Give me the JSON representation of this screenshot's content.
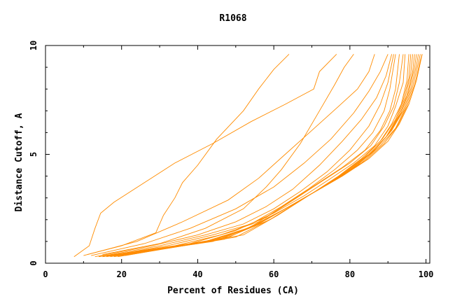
{
  "chart_data": {
    "type": "line",
    "title": "R1068",
    "xlabel": "Percent of Residues (CA)",
    "ylabel": "Distance Cutoff, A",
    "xlim": [
      0,
      101
    ],
    "ylim": [
      0,
      10
    ],
    "x_ticks": [
      0,
      20,
      40,
      60,
      80,
      100
    ],
    "y_ticks": [
      0,
      5,
      10
    ],
    "x_tick_labels": [
      "0",
      "20",
      "40",
      "60",
      "80",
      "100"
    ],
    "y_tick_labels": [
      "0",
      "5",
      "10"
    ],
    "color": "#ff8c00",
    "grid": false,
    "legend": "none",
    "series": [
      {
        "points": [
          [
            7.5,
            0.3
          ],
          [
            11.5,
            0.8
          ],
          [
            13,
            1.6
          ],
          [
            14.5,
            2.3
          ],
          [
            18,
            2.8
          ],
          [
            26,
            3.7
          ],
          [
            34,
            4.6
          ],
          [
            44,
            5.5
          ],
          [
            54,
            6.5
          ],
          [
            63,
            7.3
          ],
          [
            70.5,
            8.0
          ],
          [
            72,
            8.8
          ],
          [
            76.5,
            9.6
          ]
        ]
      },
      {
        "points": [
          [
            11,
            0.4
          ],
          [
            20,
            0.8
          ],
          [
            29,
            1.4
          ],
          [
            31,
            2.2
          ],
          [
            34,
            3.0
          ],
          [
            36,
            3.7
          ],
          [
            40,
            4.5
          ],
          [
            45,
            5.7
          ],
          [
            52,
            7.0
          ],
          [
            56,
            8.0
          ],
          [
            60,
            8.9
          ],
          [
            64,
            9.6
          ]
        ]
      },
      {
        "points": [
          [
            15,
            0.4
          ],
          [
            30,
            0.9
          ],
          [
            42,
            1.6
          ],
          [
            52,
            2.5
          ],
          [
            58,
            3.5
          ],
          [
            62,
            4.3
          ],
          [
            67,
            5.5
          ],
          [
            72,
            7.0
          ],
          [
            76,
            8.2
          ],
          [
            78.5,
            9.0
          ],
          [
            81,
            9.6
          ]
        ]
      },
      {
        "points": [
          [
            10,
            0.35
          ],
          [
            24,
            1.0
          ],
          [
            36,
            1.9
          ],
          [
            48,
            2.9
          ],
          [
            56,
            3.9
          ],
          [
            63,
            5.0
          ],
          [
            70,
            6.1
          ],
          [
            77,
            7.2
          ],
          [
            82,
            8.0
          ],
          [
            85,
            8.8
          ],
          [
            86.5,
            9.6
          ]
        ]
      },
      {
        "points": [
          [
            12,
            0.35
          ],
          [
            26,
            0.9
          ],
          [
            38,
            1.6
          ],
          [
            50,
            2.5
          ],
          [
            60,
            3.5
          ],
          [
            68,
            4.6
          ],
          [
            75,
            5.7
          ],
          [
            81,
            6.9
          ],
          [
            85,
            7.9
          ],
          [
            88,
            8.8
          ],
          [
            90,
            9.6
          ]
        ]
      },
      {
        "points": [
          [
            13,
            0.3
          ],
          [
            28,
            0.8
          ],
          [
            40,
            1.3
          ],
          [
            50,
            1.9
          ],
          [
            58,
            2.6
          ],
          [
            65,
            3.4
          ],
          [
            72,
            4.5
          ],
          [
            78,
            5.6
          ],
          [
            83,
            6.6
          ],
          [
            87,
            7.6
          ],
          [
            89.5,
            8.6
          ],
          [
            91,
            9.6
          ]
        ]
      },
      {
        "points": [
          [
            14,
            0.3
          ],
          [
            30,
            0.8
          ],
          [
            42,
            1.3
          ],
          [
            52,
            1.8
          ],
          [
            60,
            2.5
          ],
          [
            67,
            3.3
          ],
          [
            74,
            4.2
          ],
          [
            80,
            5.2
          ],
          [
            85,
            6.3
          ],
          [
            88,
            7.3
          ],
          [
            90,
            8.3
          ],
          [
            91.5,
            9.6
          ]
        ]
      },
      {
        "points": [
          [
            15,
            0.3
          ],
          [
            32,
            0.8
          ],
          [
            44,
            1.3
          ],
          [
            54,
            1.8
          ],
          [
            62,
            2.6
          ],
          [
            69,
            3.4
          ],
          [
            76,
            4.3
          ],
          [
            82,
            5.2
          ],
          [
            86,
            6.0
          ],
          [
            89,
            7.0
          ],
          [
            90.5,
            8.0
          ],
          [
            92,
            9.6
          ]
        ]
      },
      {
        "points": [
          [
            14,
            0.3
          ],
          [
            34,
            0.8
          ],
          [
            46,
            1.3
          ],
          [
            56,
            1.9
          ],
          [
            64,
            2.8
          ],
          [
            71,
            3.6
          ],
          [
            78,
            4.4
          ],
          [
            84,
            5.2
          ],
          [
            88,
            6.1
          ],
          [
            90.5,
            7.0
          ],
          [
            92,
            8.0
          ],
          [
            93,
            9.6
          ]
        ]
      },
      {
        "points": [
          [
            16,
            0.35
          ],
          [
            36,
            0.8
          ],
          [
            48,
            1.4
          ],
          [
            58,
            2.1
          ],
          [
            66,
            3.0
          ],
          [
            73,
            3.8
          ],
          [
            80,
            4.6
          ],
          [
            85.5,
            5.4
          ],
          [
            89,
            6.3
          ],
          [
            91.5,
            7.2
          ],
          [
            93,
            8.3
          ],
          [
            94,
            9.6
          ]
        ]
      },
      {
        "points": [
          [
            15,
            0.3
          ],
          [
            38,
            0.9
          ],
          [
            50,
            1.5
          ],
          [
            60,
            2.3
          ],
          [
            68,
            3.1
          ],
          [
            75,
            3.9
          ],
          [
            81,
            4.6
          ],
          [
            86.5,
            5.4
          ],
          [
            90,
            6.3
          ],
          [
            92,
            7.2
          ],
          [
            94,
            8.3
          ],
          [
            94.5,
            9.6
          ]
        ]
      },
      {
        "points": [
          [
            17,
            0.35
          ],
          [
            40,
            0.9
          ],
          [
            52,
            1.5
          ],
          [
            62,
            2.4
          ],
          [
            70,
            3.2
          ],
          [
            77,
            4.0
          ],
          [
            83,
            4.8
          ],
          [
            88,
            5.6
          ],
          [
            91,
            6.4
          ],
          [
            93.5,
            7.3
          ],
          [
            95,
            8.4
          ],
          [
            95.5,
            9.6
          ]
        ]
      },
      {
        "points": [
          [
            16,
            0.3
          ],
          [
            42,
            1.0
          ],
          [
            53,
            1.6
          ],
          [
            63,
            2.5
          ],
          [
            71,
            3.3
          ],
          [
            78,
            4.1
          ],
          [
            84,
            4.9
          ],
          [
            88.5,
            5.7
          ],
          [
            92,
            6.6
          ],
          [
            94,
            7.5
          ],
          [
            95.5,
            8.5
          ],
          [
            96,
            9.6
          ]
        ]
      },
      {
        "points": [
          [
            18,
            0.35
          ],
          [
            43,
            1.0
          ],
          [
            55,
            1.7
          ],
          [
            64,
            2.6
          ],
          [
            72,
            3.4
          ],
          [
            79,
            4.2
          ],
          [
            85,
            5.0
          ],
          [
            89.5,
            5.8
          ],
          [
            92.5,
            6.7
          ],
          [
            94.5,
            7.6
          ],
          [
            96,
            8.7
          ],
          [
            96.5,
            9.6
          ]
        ]
      },
      {
        "points": [
          [
            17,
            0.3
          ],
          [
            44,
            1.0
          ],
          [
            56,
            1.8
          ],
          [
            65,
            2.7
          ],
          [
            73,
            3.5
          ],
          [
            80,
            4.3
          ],
          [
            86,
            5.1
          ],
          [
            90,
            5.9
          ],
          [
            93,
            6.8
          ],
          [
            95,
            7.7
          ],
          [
            96.5,
            8.8
          ],
          [
            97,
            9.6
          ]
        ]
      },
      {
        "points": [
          [
            19,
            0.35
          ],
          [
            46,
            1.1
          ],
          [
            57,
            1.9
          ],
          [
            66,
            2.8
          ],
          [
            74,
            3.6
          ],
          [
            81,
            4.4
          ],
          [
            86.5,
            5.2
          ],
          [
            90.5,
            6.0
          ],
          [
            93.5,
            6.9
          ],
          [
            95.5,
            7.9
          ],
          [
            97,
            9.0
          ],
          [
            97.5,
            9.6
          ]
        ]
      },
      {
        "points": [
          [
            18,
            0.3
          ],
          [
            47,
            1.1
          ],
          [
            58,
            2.0
          ],
          [
            67,
            2.9
          ],
          [
            75,
            3.7
          ],
          [
            82,
            4.5
          ],
          [
            87,
            5.3
          ],
          [
            91,
            6.1
          ],
          [
            94,
            7.0
          ],
          [
            96,
            8.0
          ],
          [
            97.5,
            9.1
          ],
          [
            98,
            9.6
          ]
        ]
      },
      {
        "points": [
          [
            20,
            0.35
          ],
          [
            48,
            1.2
          ],
          [
            59,
            2.0
          ],
          [
            68,
            3.0
          ],
          [
            76,
            3.8
          ],
          [
            83,
            4.6
          ],
          [
            88,
            5.4
          ],
          [
            92,
            6.2
          ],
          [
            94.5,
            7.1
          ],
          [
            96.5,
            8.1
          ],
          [
            98,
            9.2
          ],
          [
            98.5,
            9.6
          ]
        ]
      },
      {
        "points": [
          [
            19,
            0.3
          ],
          [
            50,
            1.2
          ],
          [
            60,
            2.1
          ],
          [
            69,
            3.1
          ],
          [
            77,
            3.9
          ],
          [
            84,
            4.7
          ],
          [
            89,
            5.5
          ],
          [
            92.5,
            6.3
          ],
          [
            95,
            7.2
          ],
          [
            97,
            8.2
          ],
          [
            98.5,
            9.3
          ],
          [
            99,
            9.6
          ]
        ]
      },
      {
        "points": [
          [
            21,
            0.35
          ],
          [
            52,
            1.3
          ],
          [
            61,
            2.2
          ],
          [
            70,
            3.2
          ],
          [
            78,
            4.0
          ],
          [
            85,
            4.8
          ],
          [
            90,
            5.6
          ],
          [
            93,
            6.4
          ],
          [
            95.5,
            7.3
          ],
          [
            97.5,
            8.4
          ],
          [
            99,
            9.6
          ]
        ]
      }
    ]
  }
}
